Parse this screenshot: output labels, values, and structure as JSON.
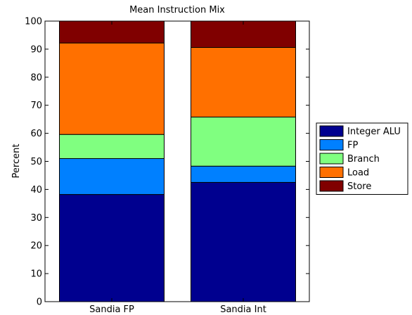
{
  "chart_data": {
    "type": "bar",
    "stacked": true,
    "title": "Mean Instruction Mix",
    "xlabel": "",
    "ylabel": "Percent",
    "ylim": [
      0,
      100
    ],
    "yticks": [
      0,
      10,
      20,
      30,
      40,
      50,
      60,
      70,
      80,
      90,
      100
    ],
    "categories": [
      "Sandia FP",
      "Sandia Int"
    ],
    "series": [
      {
        "name": "Integer ALU",
        "color": "#00008f",
        "values": [
          38.2,
          42.5
        ]
      },
      {
        "name": "FP",
        "color": "#0080ff",
        "values": [
          12.8,
          5.8
        ]
      },
      {
        "name": "Branch",
        "color": "#80ff80",
        "values": [
          8.6,
          17.5
        ]
      },
      {
        "name": "Load",
        "color": "#ff7000",
        "values": [
          32.6,
          24.8
        ]
      },
      {
        "name": "Store",
        "color": "#800000",
        "values": [
          7.8,
          9.4
        ]
      }
    ],
    "grid": false,
    "legend": "right"
  }
}
